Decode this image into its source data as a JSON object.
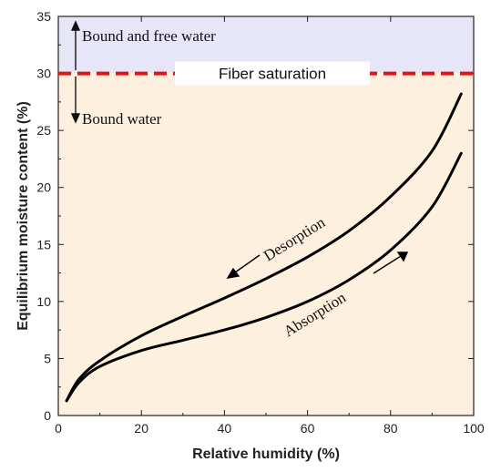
{
  "chart_data": {
    "type": "line",
    "title": "",
    "xlabel": "Relative humidity (%)",
    "ylabel": "Equilibrium moisture content (%)",
    "xlim": [
      0,
      100
    ],
    "ylim": [
      0,
      35
    ],
    "xticks": [
      "0",
      "20",
      "40",
      "60",
      "80",
      "100"
    ],
    "yticks": [
      "0",
      "5",
      "10",
      "15",
      "20",
      "25",
      "30",
      "35"
    ],
    "grid": false,
    "background_colors": {
      "above_fiber_saturation": "#e6e6f8",
      "below_fiber_saturation": "#fdf0de",
      "fiber_saturation_line": "#e01414",
      "curves": "#000000"
    },
    "fiber_saturation": {
      "y": 30,
      "label": "Fiber saturation"
    },
    "region_labels": {
      "above": "Bound and free water",
      "below": "Bound water"
    },
    "series": [
      {
        "name": "Desorption",
        "x": [
          2,
          5,
          10,
          20,
          30,
          40,
          50,
          60,
          70,
          80,
          90,
          97
        ],
        "y": [
          1.3,
          3.2,
          4.8,
          7.0,
          8.7,
          10.3,
          12.0,
          13.9,
          16.2,
          19.2,
          23.2,
          28.2
        ]
      },
      {
        "name": "Absorption",
        "x": [
          2,
          5,
          10,
          20,
          30,
          40,
          50,
          60,
          70,
          80,
          90,
          97
        ],
        "y": [
          1.3,
          2.9,
          4.3,
          5.7,
          6.6,
          7.5,
          8.6,
          10.0,
          11.9,
          14.5,
          18.3,
          23.0
        ]
      }
    ]
  }
}
